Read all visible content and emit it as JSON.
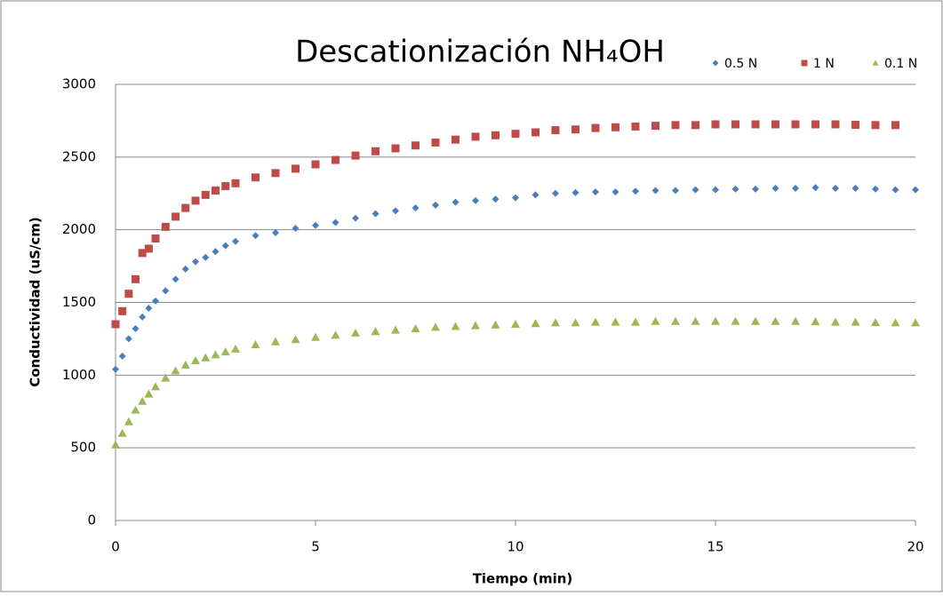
{
  "chart_data": {
    "type": "scatter",
    "title": "Descationización NH₄OH",
    "xlabel": "Tiempo (min)",
    "ylabel": "Conductividad (uS/cm)",
    "x": [
      0,
      0.17,
      0.33,
      0.5,
      0.67,
      0.83,
      1,
      1.25,
      1.5,
      1.75,
      2,
      2.25,
      2.5,
      2.75,
      3,
      3.5,
      4,
      4.5,
      5,
      5.5,
      6,
      6.5,
      7,
      7.5,
      8,
      8.5,
      9,
      9.5,
      10,
      10.5,
      11,
      11.5,
      12,
      12.5,
      13,
      13.5,
      14,
      14.5,
      15,
      15.5,
      16,
      16.5,
      17,
      17.5,
      18,
      18.5,
      19,
      19.5,
      20
    ],
    "series": [
      {
        "name": "0.5 N",
        "color": "#4a7ebb",
        "marker": "diamond",
        "values": [
          1040,
          1130,
          1250,
          1320,
          1400,
          1460,
          1510,
          1580,
          1660,
          1730,
          1780,
          1810,
          1850,
          1890,
          1920,
          1960,
          1980,
          2010,
          2030,
          2050,
          2080,
          2110,
          2130,
          2150,
          2170,
          2190,
          2200,
          2210,
          2220,
          2240,
          2250,
          2255,
          2260,
          2260,
          2265,
          2270,
          2270,
          2275,
          2275,
          2280,
          2280,
          2285,
          2285,
          2290,
          2285,
          2285,
          2280,
          2275,
          2275
        ]
      },
      {
        "name": "1 N",
        "color": "#be4b48",
        "marker": "square",
        "values": [
          1350,
          1440,
          1560,
          1660,
          1840,
          1870,
          1940,
          2020,
          2090,
          2150,
          2200,
          2240,
          2270,
          2300,
          2320,
          2360,
          2390,
          2420,
          2450,
          2480,
          2510,
          2540,
          2560,
          2580,
          2600,
          2620,
          2640,
          2650,
          2660,
          2670,
          2685,
          2690,
          2700,
          2705,
          2710,
          2715,
          2720,
          2720,
          2725,
          2725,
          2725,
          2725,
          2725,
          2725,
          2725,
          2722,
          2720,
          2720,
          null
        ]
      },
      {
        "name": "0.1 N",
        "color": "#98b954",
        "marker": "triangle",
        "values": [
          520,
          600,
          680,
          760,
          820,
          870,
          920,
          980,
          1030,
          1070,
          1100,
          1120,
          1140,
          1160,
          1180,
          1210,
          1230,
          1245,
          1260,
          1275,
          1290,
          1300,
          1310,
          1320,
          1330,
          1335,
          1340,
          1345,
          1350,
          1355,
          1360,
          1360,
          1365,
          1365,
          1365,
          1370,
          1370,
          1370,
          1370,
          1370,
          1370,
          1370,
          1370,
          1368,
          1365,
          1365,
          1362,
          1360,
          1360
        ]
      }
    ],
    "xlim": [
      0,
      20
    ],
    "xticks": [
      0,
      5,
      10,
      15,
      20
    ],
    "ylim": [
      0,
      3000
    ],
    "yticks": [
      0,
      500,
      1000,
      1500,
      2000,
      2500,
      3000
    ],
    "grid": true,
    "legend": "top-right"
  }
}
